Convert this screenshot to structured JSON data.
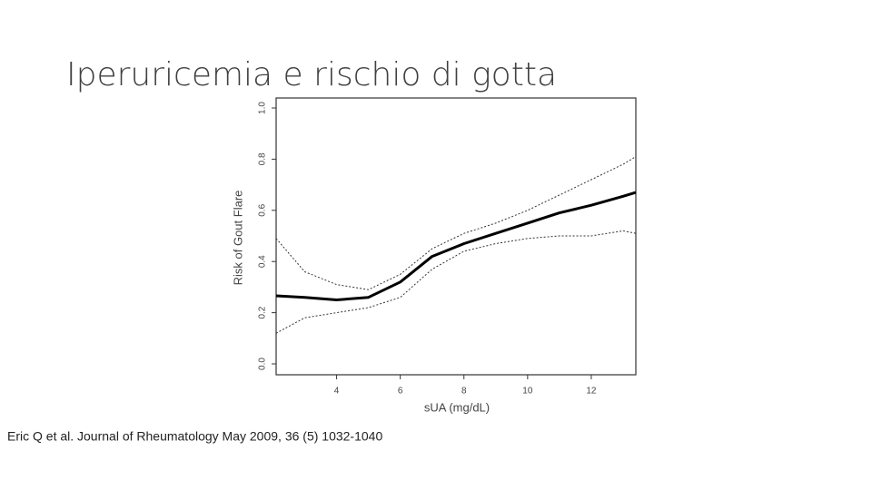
{
  "slide_title": "Iperuricemia e rischio di gotta",
  "citation": "Eric Q et al. Journal of Rheumatology May 2009, 36 (5) 1032-1040",
  "chart_data": {
    "type": "line",
    "x_label": "sUA (mg/dL)",
    "y_label": "Risk of Gout Flare",
    "x": [
      2.1,
      3,
      4,
      5,
      6,
      7,
      8,
      9,
      10,
      11,
      12,
      13,
      13.4
    ],
    "series": [
      {
        "color": "#000000",
        "width": 3,
        "dash": "none",
        "values": [
          0.266,
          0.26,
          0.25,
          0.26,
          0.32,
          0.42,
          0.47,
          0.51,
          0.55,
          0.59,
          0.62,
          0.655,
          0.67
        ]
      },
      {
        "color": "#333333",
        "width": 1,
        "dash": "2 2",
        "values": [
          0.49,
          0.36,
          0.31,
          0.29,
          0.35,
          0.45,
          0.51,
          0.55,
          0.6,
          0.66,
          0.72,
          0.78,
          0.81
        ]
      },
      {
        "color": "#333333",
        "width": 1,
        "dash": "2 2",
        "values": [
          0.12,
          0.18,
          0.2,
          0.22,
          0.26,
          0.37,
          0.44,
          0.47,
          0.49,
          0.5,
          0.5,
          0.52,
          0.51
        ]
      }
    ],
    "xlim": [
      2.1,
      13.4
    ],
    "ylim": [
      0,
      1
    ],
    "xticks": [
      4,
      6,
      8,
      10,
      12
    ],
    "yticks": [
      {
        "value": 0,
        "label": "0.0"
      },
      0.2,
      0.4,
      0.6,
      0.8,
      {
        "value": 1,
        "label": "1.0"
      }
    ]
  }
}
